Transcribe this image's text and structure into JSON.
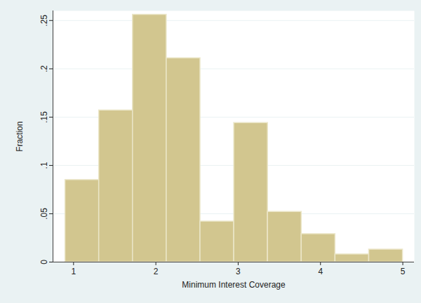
{
  "chart_data": {
    "type": "histogram",
    "x_label": "Minimum Interest Coverage",
    "y_label": "Fraction",
    "bins": [
      0.9,
      1.31,
      1.72,
      2.13,
      2.54,
      2.95,
      3.36,
      3.77,
      4.18,
      4.59,
      5.0
    ],
    "values": [
      0.085,
      0.157,
      0.256,
      0.211,
      0.042,
      0.144,
      0.052,
      0.029,
      0.008,
      0.013
    ],
    "color": "#d2c68f",
    "xlim": [
      0.75,
      5.14
    ],
    "xticks": [
      1,
      2,
      3,
      4,
      5
    ],
    "ylim": [
      0,
      0.26
    ],
    "yticks": [
      0,
      {
        "value": 0.05,
        "label": ".05"
      },
      {
        "value": 0.1,
        "label": ".1"
      },
      {
        "value": 0.15,
        "label": ".15"
      },
      {
        "value": 0.2,
        "label": ".2"
      },
      {
        "value": 0.25,
        "label": ".25"
      }
    ],
    "grid": true
  }
}
